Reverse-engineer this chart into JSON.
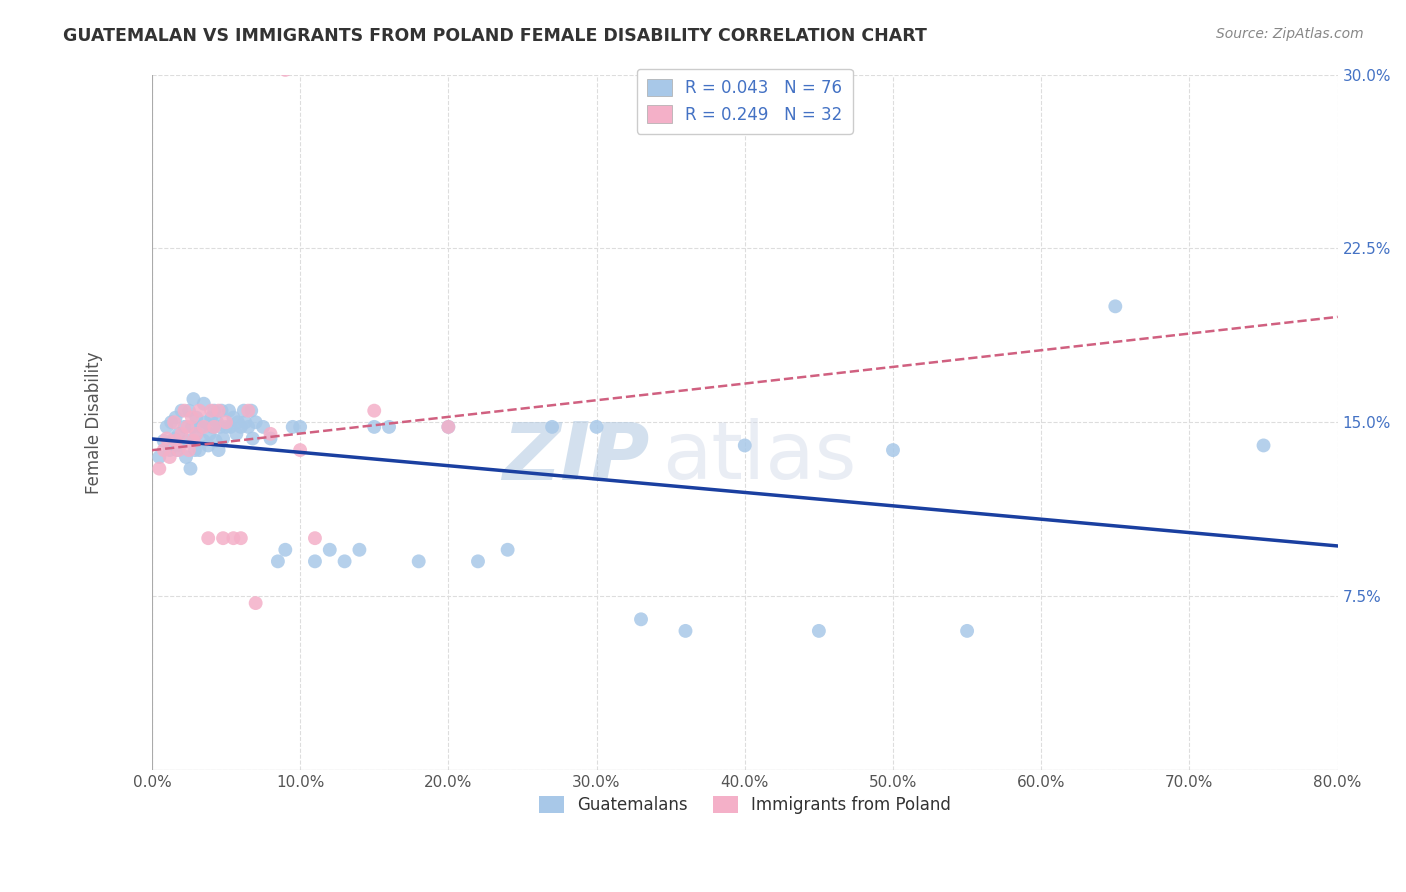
{
  "title": "GUATEMALAN VS IMMIGRANTS FROM POLAND FEMALE DISABILITY CORRELATION CHART",
  "source": "Source: ZipAtlas.com",
  "ylabel": "Female Disability",
  "x_min": 0.0,
  "x_max": 0.8,
  "y_min": 0.0,
  "y_max": 0.3,
  "x_ticks": [
    0.0,
    0.1,
    0.2,
    0.3,
    0.4,
    0.5,
    0.6,
    0.7,
    0.8
  ],
  "x_tick_labels": [
    "0.0%",
    "10.0%",
    "20.0%",
    "30.0%",
    "40.0%",
    "50.0%",
    "60.0%",
    "70.0%",
    "80.0%"
  ],
  "y_ticks": [
    0.0,
    0.075,
    0.15,
    0.225,
    0.3
  ],
  "y_tick_labels": [
    "",
    "7.5%",
    "15.0%",
    "22.5%",
    "30.0%"
  ],
  "guatemalan_R": 0.043,
  "guatemalan_N": 76,
  "poland_R": 0.249,
  "poland_N": 32,
  "guatemalan_color": "#a8c8e8",
  "poland_color": "#f4b0c8",
  "trend_guatemalan_color": "#1a3fa0",
  "trend_poland_color": "#d06080",
  "background_color": "#ffffff",
  "grid_color": "#dddddd",
  "watermark_zip": "ZIP",
  "watermark_atlas": "atlas",
  "legend_label_1": "Guatemalans",
  "legend_label_2": "Immigrants from Poland",
  "guatemalan_x": [
    0.005,
    0.008,
    0.01,
    0.012,
    0.013,
    0.015,
    0.016,
    0.017,
    0.018,
    0.019,
    0.02,
    0.022,
    0.023,
    0.024,
    0.025,
    0.026,
    0.027,
    0.028,
    0.029,
    0.03,
    0.03,
    0.032,
    0.033,
    0.035,
    0.035,
    0.036,
    0.038,
    0.039,
    0.04,
    0.041,
    0.042,
    0.043,
    0.044,
    0.045,
    0.046,
    0.047,
    0.048,
    0.05,
    0.052,
    0.053,
    0.055,
    0.057,
    0.058,
    0.06,
    0.062,
    0.063,
    0.065,
    0.067,
    0.068,
    0.07,
    0.075,
    0.08,
    0.085,
    0.09,
    0.095,
    0.1,
    0.11,
    0.12,
    0.13,
    0.14,
    0.15,
    0.16,
    0.18,
    0.2,
    0.22,
    0.24,
    0.27,
    0.3,
    0.33,
    0.36,
    0.4,
    0.45,
    0.5,
    0.55,
    0.65,
    0.75
  ],
  "guatemalan_y": [
    0.135,
    0.142,
    0.148,
    0.138,
    0.15,
    0.143,
    0.152,
    0.138,
    0.145,
    0.14,
    0.155,
    0.148,
    0.135,
    0.142,
    0.155,
    0.13,
    0.148,
    0.16,
    0.138,
    0.145,
    0.152,
    0.138,
    0.148,
    0.158,
    0.142,
    0.15,
    0.14,
    0.145,
    0.152,
    0.148,
    0.155,
    0.142,
    0.15,
    0.138,
    0.148,
    0.155,
    0.143,
    0.148,
    0.155,
    0.148,
    0.152,
    0.145,
    0.15,
    0.148,
    0.155,
    0.15,
    0.148,
    0.155,
    0.143,
    0.15,
    0.148,
    0.143,
    0.09,
    0.095,
    0.148,
    0.148,
    0.09,
    0.095,
    0.09,
    0.095,
    0.148,
    0.148,
    0.09,
    0.148,
    0.09,
    0.095,
    0.148,
    0.148,
    0.065,
    0.06,
    0.14,
    0.06,
    0.138,
    0.06,
    0.2,
    0.14
  ],
  "poland_x": [
    0.005,
    0.008,
    0.01,
    0.012,
    0.015,
    0.016,
    0.018,
    0.02,
    0.022,
    0.024,
    0.025,
    0.027,
    0.028,
    0.03,
    0.032,
    0.035,
    0.038,
    0.04,
    0.042,
    0.045,
    0.048,
    0.05,
    0.055,
    0.06,
    0.065,
    0.07,
    0.08,
    0.09,
    0.1,
    0.11,
    0.15,
    0.2
  ],
  "poland_y": [
    0.13,
    0.138,
    0.143,
    0.135,
    0.15,
    0.142,
    0.138,
    0.145,
    0.155,
    0.148,
    0.138,
    0.152,
    0.142,
    0.145,
    0.155,
    0.148,
    0.1,
    0.155,
    0.148,
    0.155,
    0.1,
    0.15,
    0.1,
    0.1,
    0.155,
    0.072,
    0.145,
    0.302,
    0.138,
    0.1,
    0.155,
    0.148
  ]
}
